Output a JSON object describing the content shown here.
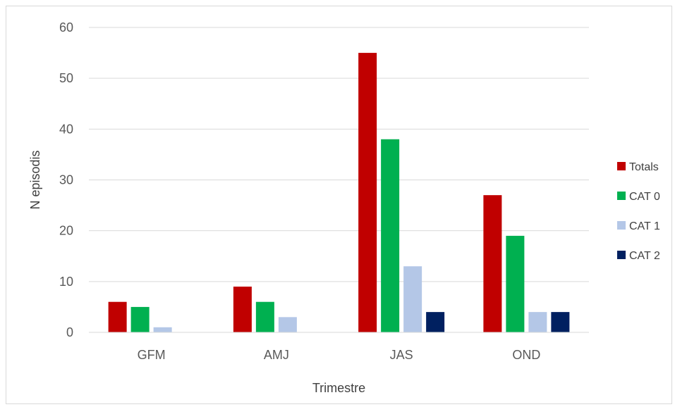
{
  "chart_data": {
    "type": "bar",
    "title": "",
    "xlabel": "Trimestre",
    "ylabel": "N episodis",
    "categories": [
      "GFM",
      "AMJ",
      "JAS",
      "OND"
    ],
    "series": [
      {
        "name": "Totals",
        "color": "#C00000",
        "values": [
          6,
          9,
          55,
          27
        ]
      },
      {
        "name": "CAT 0",
        "color": "#00B050",
        "values": [
          5,
          6,
          38,
          19
        ]
      },
      {
        "name": "CAT 1",
        "color": "#B4C7E7",
        "values": [
          1,
          3,
          13,
          4
        ]
      },
      {
        "name": "CAT 2",
        "color": "#002060",
        "values": [
          0,
          0,
          4,
          4
        ]
      }
    ],
    "ylim": [
      0,
      60
    ],
    "yticks": [
      0,
      10,
      20,
      30,
      40,
      50,
      60
    ],
    "grid": true,
    "legend": "right"
  }
}
